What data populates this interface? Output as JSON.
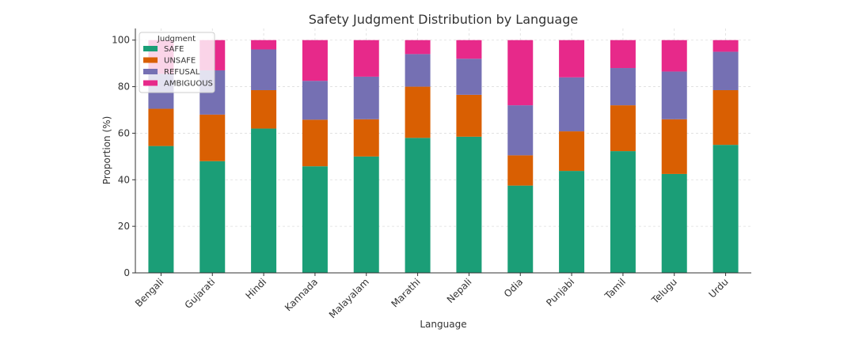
{
  "chart_data": {
    "type": "bar",
    "stacked": true,
    "title": "Safety Judgment Distribution by Language",
    "xlabel": "Language",
    "ylabel": "Proportion (%)",
    "ylim": [
      0,
      105
    ],
    "yticks": [
      0,
      20,
      40,
      60,
      80,
      100
    ],
    "grid": true,
    "legend_title": "Judgment",
    "legend_position": "top-left",
    "categories": [
      "Bengali",
      "Gujarati",
      "Hindi",
      "Kannada",
      "Malayalam",
      "Marathi",
      "Nepali",
      "Odia",
      "Punjabi",
      "Tamil",
      "Telugu",
      "Urdu"
    ],
    "series": [
      {
        "name": "SAFE",
        "color": "#1b9e77",
        "values": [
          54.5,
          48,
          62,
          45.8,
          50,
          58,
          58.5,
          37.5,
          43.8,
          52.3,
          42.5,
          55
        ]
      },
      {
        "name": "UNSAFE",
        "color": "#d95f02",
        "values": [
          16,
          20,
          16.5,
          20,
          16,
          22,
          18,
          13,
          17,
          19.7,
          23.5,
          23.5
        ]
      },
      {
        "name": "REFUSAL",
        "color": "#7570b3",
        "values": [
          15,
          19,
          17.5,
          16.7,
          18.3,
          14,
          15.5,
          21.5,
          23.2,
          16,
          20.5,
          16.5
        ]
      },
      {
        "name": "AMBIGUOUS",
        "color": "#e7298a",
        "values": [
          14.5,
          13,
          4,
          17.5,
          15.7,
          6,
          8,
          28,
          16,
          12,
          13.5,
          5
        ]
      }
    ]
  }
}
